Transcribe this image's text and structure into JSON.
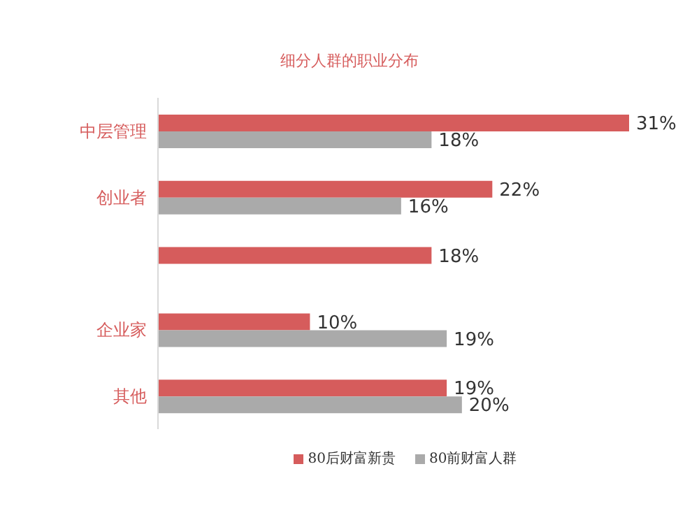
{
  "chart_data": {
    "type": "bar",
    "orientation": "horizontal",
    "title": "细分人群的职业分布",
    "categories": [
      "中层管理",
      "创业者",
      null,
      "企业家",
      "其他"
    ],
    "series": [
      {
        "name": "80后财富新贵",
        "color": "#d65c5c",
        "values": [
          31,
          22,
          18,
          10,
          19
        ],
        "value_labels": [
          "31%",
          "22%",
          "18%",
          "10%",
          "19%"
        ]
      },
      {
        "name": "80前财富人群",
        "color": "#aaaaaa",
        "values": [
          18,
          16,
          null,
          19,
          20
        ],
        "value_labels": [
          "18%",
          "16%",
          null,
          "19%",
          "20%"
        ]
      }
    ],
    "legend": "bottom",
    "grid": false
  }
}
